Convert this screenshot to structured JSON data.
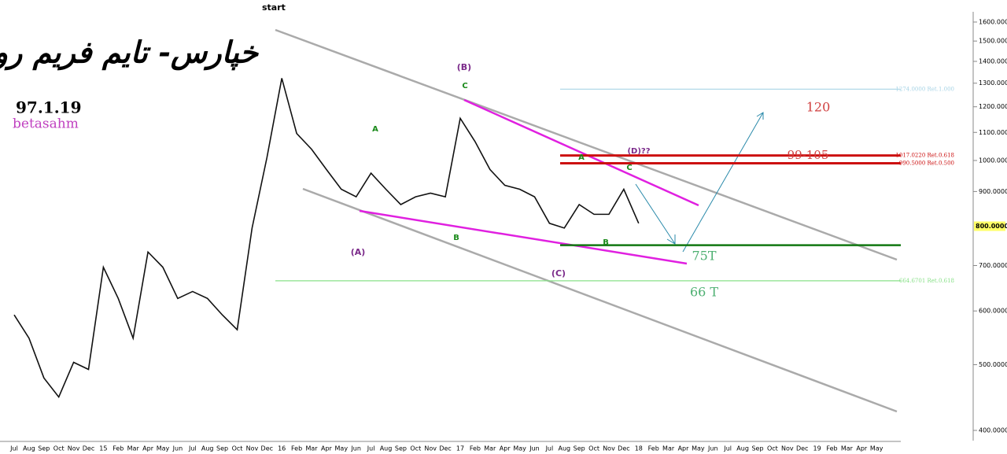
{
  "title": "خپارس- تایم فریم روزانه",
  "date": "97.1.19",
  "watermark": "betasahm",
  "start_label": "start",
  "chart_data": {
    "type": "line",
    "log_scale": true,
    "categories": [
      "Jul",
      "Aug",
      "Sep",
      "Oct",
      "Nov",
      "Dec",
      "15",
      "Feb",
      "Mar",
      "Apr",
      "May",
      "Jun",
      "Jul",
      "Aug",
      "Sep",
      "Oct",
      "Nov",
      "Dec",
      "16",
      "Feb",
      "Mar",
      "Apr",
      "May",
      "Jun",
      "Jul",
      "Aug",
      "Sep",
      "Oct",
      "Nov",
      "Dec",
      "17",
      "Feb",
      "Mar",
      "Apr",
      "May",
      "Jun",
      "Jul",
      "Aug",
      "Sep",
      "Oct",
      "Nov",
      "Dec",
      "18",
      "Feb",
      "Mar",
      "Apr",
      "May",
      "Jun",
      "Jul",
      "Aug",
      "Sep",
      "Oct",
      "Nov",
      "Dec",
      "19",
      "Feb",
      "Mar",
      "Apr",
      "May"
    ],
    "series": [
      {
        "color": "#111111",
        "values": [
          592,
          547,
          478,
          448,
          504,
          492,
          696,
          626,
          547,
          733,
          696,
          626,
          641,
          626,
          592,
          563,
          795,
          1010,
          1322,
          1096,
          1039,
          970,
          907,
          884,
          958,
          907,
          861,
          884,
          895,
          884,
          1154,
          1066,
          970,
          919,
          907,
          884,
          808,
          795,
          861,
          833,
          833,
          907,
          808,
          null,
          null,
          null,
          null,
          null,
          null,
          null,
          null,
          null,
          null,
          null,
          null,
          null,
          null,
          null,
          null
        ]
      }
    ],
    "ylim": [
      400,
      1600
    ],
    "yticks": [
      {
        "value": 400,
        "label": "400.0000"
      },
      {
        "value": 500,
        "label": "500.0000"
      },
      {
        "value": 600,
        "label": "600.0000"
      },
      {
        "value": 700,
        "label": "700.0000"
      },
      {
        "value": 900,
        "label": "900.0000"
      },
      {
        "value": 1000,
        "label": "1000.0000"
      },
      {
        "value": 1100,
        "label": "1100.0000"
      },
      {
        "value": 1200,
        "label": "1200.0000"
      },
      {
        "value": 1300,
        "label": "1300.0000"
      },
      {
        "value": 1400,
        "label": "1400.0000"
      },
      {
        "value": 1500,
        "label": "1500.0000"
      },
      {
        "value": 1600,
        "label": "1600.0000"
      }
    ],
    "last_price": {
      "value": 800,
      "label": "800.0000"
    },
    "levels": [
      {
        "value": 1274,
        "label": "1274.0000 Ret.1.000",
        "color": "#a8d4e6"
      },
      {
        "value": 1017.022,
        "label": "1017.0220 Ret.0.618",
        "color": "#cc1111"
      },
      {
        "value": 990.5,
        "label": "990.5000 Ret.0.500",
        "color": "#cc1111"
      },
      {
        "value": 750,
        "color": "#117711"
      },
      {
        "value": 664.6701,
        "label": "664.6701 Ret.0.618",
        "color": "#88e088"
      }
    ],
    "annotations": [
      "(B)",
      "C",
      "A",
      "B",
      "(A)",
      "(C)",
      "(D)??",
      "A",
      "C",
      "B",
      "120",
      "99-105",
      "75T",
      "66 T"
    ]
  }
}
